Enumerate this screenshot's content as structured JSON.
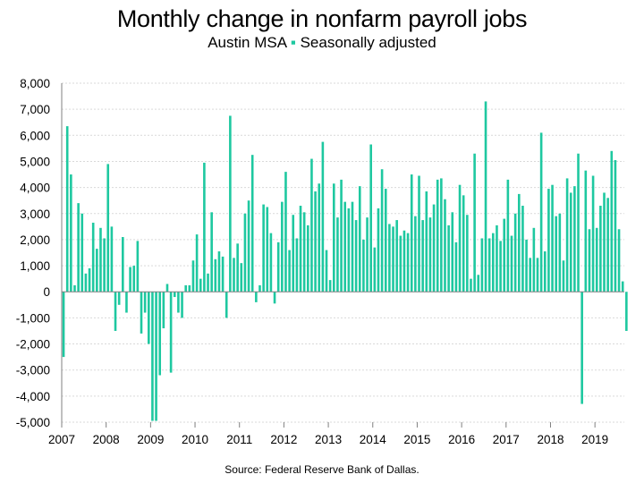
{
  "chart_data": {
    "type": "bar",
    "title": "Monthly change in nonfarm payroll jobs",
    "subtitle": "Austin MSA",
    "legend_marker": "▪",
    "subtitle_tail": "Seasonally adjusted",
    "source": "Source: Federal Reserve Bank of Dallas.",
    "bar_color": "#1ec8a0",
    "grid": true,
    "ylim": [
      -5000,
      8000
    ],
    "y_ticks": [
      "-5,000",
      "-4,000",
      "-3,000",
      "-2,000",
      "-1,000",
      "0",
      "1,000",
      "2,000",
      "3,000",
      "4,000",
      "5,000",
      "6,000",
      "7,000",
      "8,000"
    ],
    "x_ticks": [
      "2007",
      "2008",
      "2009",
      "2010",
      "2011",
      "2012",
      "2013",
      "2014",
      "2015",
      "2016",
      "2017",
      "2018",
      "2019"
    ],
    "start": "2007-01",
    "frequency": "monthly",
    "values": [
      -2500,
      6350,
      4500,
      250,
      3400,
      3000,
      700,
      900,
      2650,
      1650,
      2450,
      2050,
      4900,
      2500,
      -1500,
      -500,
      2100,
      -800,
      950,
      1000,
      1950,
      -1600,
      -800,
      -2000,
      -4950,
      -4950,
      -3200,
      -1400,
      300,
      -3100,
      -200,
      -800,
      -1000,
      250,
      250,
      1200,
      2200,
      500,
      4950,
      700,
      3050,
      1250,
      1550,
      1350,
      -1000,
      6750,
      1300,
      1850,
      1100,
      3000,
      3500,
      5250,
      -400,
      250,
      3350,
      3250,
      2250,
      -450,
      1900,
      3450,
      4600,
      1600,
      2950,
      2050,
      3300,
      3050,
      2550,
      5100,
      3850,
      4150,
      5750,
      1600,
      450,
      4150,
      2850,
      4300,
      3450,
      3200,
      3450,
      2750,
      4050,
      2000,
      2850,
      5650,
      1700,
      3200,
      4700,
      3950,
      2600,
      2500,
      2750,
      2150,
      2350,
      2250,
      4500,
      2900,
      4450,
      2750,
      3850,
      2850,
      3350,
      4300,
      4350,
      3550,
      2550,
      3050,
      1900,
      4100,
      3700,
      2950,
      500,
      5300,
      650,
      2050,
      7300,
      2050,
      2250,
      2550,
      1950,
      2800,
      4300,
      2150,
      3000,
      3750,
      3300,
      2000,
      1300,
      2450,
      1300,
      6100,
      1550,
      3950,
      4100,
      2900,
      3000,
      1200,
      4350,
      3800,
      4050,
      5300,
      -4300,
      4650,
      2400,
      4450,
      2450,
      3300,
      3800,
      3600,
      5400,
      5050,
      2400,
      400,
      -1500
    ]
  }
}
